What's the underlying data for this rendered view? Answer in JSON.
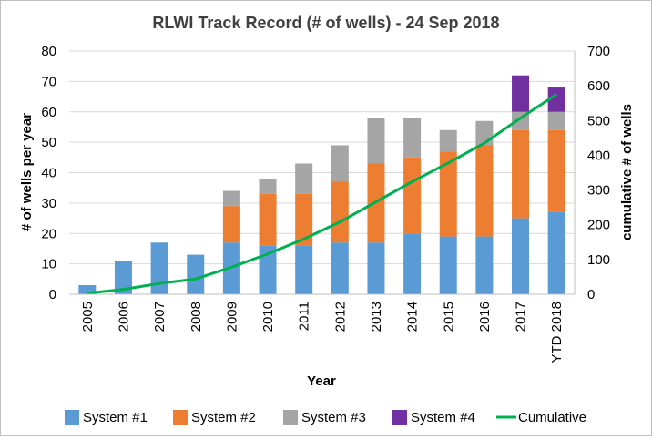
{
  "chart_data": {
    "type": "bar",
    "title": "RLWI Track Record (# of wells) - 24 Sep 2018",
    "xlabel": "Year",
    "ylabel": "# of wells per year",
    "y2label": "cumulative # of wells",
    "ylim": [
      0,
      80
    ],
    "y2lim": [
      0,
      700
    ],
    "yticks": [
      "0",
      "10",
      "20",
      "30",
      "40",
      "50",
      "60",
      "70",
      "80"
    ],
    "y2ticks": [
      "0",
      "100",
      "200",
      "300",
      "400",
      "500",
      "600",
      "700"
    ],
    "grid": true,
    "legend_position": "bottom",
    "categories": [
      "2005",
      "2006",
      "2007",
      "2008",
      "2009",
      "2010",
      "2011",
      "2012",
      "2013",
      "2014",
      "2015",
      "2016",
      "2017",
      "YTD 2018"
    ],
    "series": [
      {
        "name": "System #1",
        "color": "#5b9bd5",
        "values": [
          3,
          11,
          17,
          13,
          17,
          16,
          16,
          17,
          17,
          20,
          19,
          19,
          25,
          27
        ]
      },
      {
        "name": "System #2",
        "color": "#ed7d31",
        "values": [
          0,
          0,
          0,
          0,
          12,
          17,
          17,
          20,
          26,
          25,
          28,
          30,
          29,
          27
        ]
      },
      {
        "name": "System #3",
        "color": "#a5a5a5",
        "values": [
          0,
          0,
          0,
          0,
          5,
          5,
          10,
          12,
          15,
          13,
          7,
          8,
          6,
          6
        ]
      },
      {
        "name": "System #4",
        "color": "#7030a0",
        "values": [
          0,
          0,
          0,
          0,
          0,
          0,
          0,
          0,
          0,
          0,
          0,
          0,
          12,
          8
        ]
      }
    ],
    "line_series": {
      "name": "Cumulative",
      "color": "#00b050",
      "axis": "secondary",
      "values": [
        3,
        14,
        31,
        44,
        78,
        116,
        159,
        208,
        266,
        324,
        378,
        435,
        507,
        575
      ]
    }
  }
}
